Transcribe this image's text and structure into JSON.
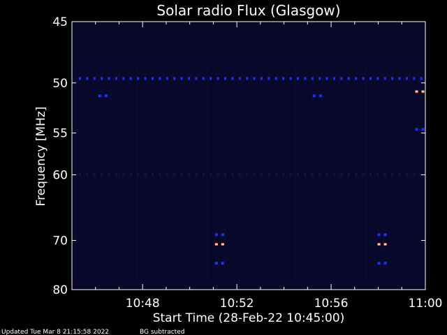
{
  "chart_data": {
    "type": "heatmap",
    "title": "Solar radio Flux (Glasgow)",
    "xlabel": "Start Time (28-Feb-22 10:45:00)",
    "ylabel": "Frequency [MHz]",
    "x_ticks": [
      "10:48",
      "10:52",
      "10:56",
      "11:00"
    ],
    "x_tick_values_min": [
      3,
      7,
      11,
      15
    ],
    "xlim_min": [
      0,
      15
    ],
    "y_ticks": [
      45,
      50,
      55,
      60,
      70,
      80
    ],
    "ylim": [
      45,
      80
    ],
    "y_scale": "reciprocal",
    "colormap": {
      "background": "#000000",
      "low": "#08082a",
      "mid": "#1a30ff",
      "high": "#ff5a28"
    },
    "horizontal_bands": [
      {
        "freq": 49.6,
        "intensity": "mid"
      },
      {
        "freq": 60.0,
        "intensity": "low"
      }
    ],
    "bursts": [
      {
        "time_min": 6.25,
        "freq": 69.0,
        "intensity": "mid"
      },
      {
        "time_min": 6.25,
        "freq": 70.7,
        "intensity": "high"
      },
      {
        "time_min": 6.25,
        "freq": 74.3,
        "intensity": "mid"
      },
      {
        "time_min": 13.15,
        "freq": 69.0,
        "intensity": "mid"
      },
      {
        "time_min": 13.15,
        "freq": 70.7,
        "intensity": "high"
      },
      {
        "time_min": 13.15,
        "freq": 74.3,
        "intensity": "mid"
      },
      {
        "time_min": 14.75,
        "freq": 50.8,
        "intensity": "high"
      },
      {
        "time_min": 14.75,
        "freq": 54.6,
        "intensity": "mid"
      },
      {
        "time_min": 1.3,
        "freq": 51.2,
        "intensity": "mid"
      },
      {
        "time_min": 10.4,
        "freq": 51.2,
        "intensity": "mid"
      }
    ]
  },
  "footer": {
    "updated": "Updated Tue Mar  8 21:15:58 2022",
    "note": "BG subtracted"
  }
}
